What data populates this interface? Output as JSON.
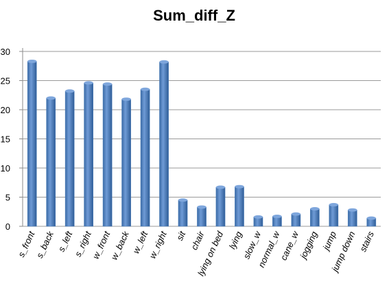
{
  "chart_data": {
    "type": "bar",
    "title": "Sum_diff_Z",
    "categories": [
      "s_front",
      "s_back",
      "s_left",
      "s_right",
      "w_front",
      "w_back",
      "w_left",
      "w_right",
      "sit",
      "chair",
      "lying on bed",
      "lying",
      "slow_w",
      "normal_w",
      "cane_w",
      "jogging",
      "jump",
      "jump down",
      "stairs"
    ],
    "values": [
      28.3,
      22,
      23.2,
      24.6,
      24.4,
      21.8,
      23.5,
      28.2,
      4.5,
      3.3,
      6.7,
      6.8,
      1.6,
      1.7,
      2.1,
      3,
      3.7,
      2.8,
      1.4
    ],
    "color": "#4f81bd",
    "ylim": [
      0,
      30
    ],
    "yticks": [
      0,
      5,
      10,
      15,
      20,
      25,
      30
    ],
    "grid": true
  }
}
